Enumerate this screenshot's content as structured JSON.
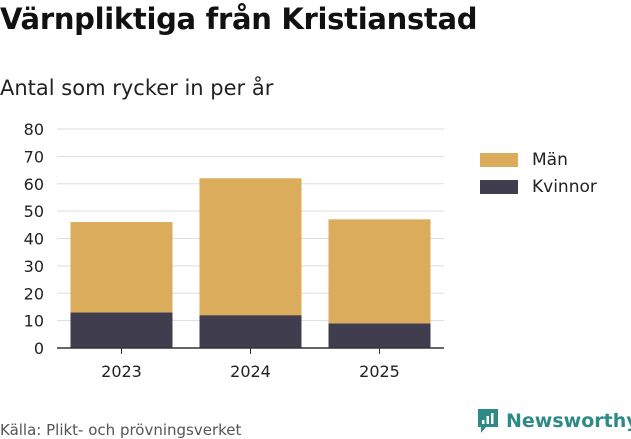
{
  "title": "Värnpliktiga från Kristianstad",
  "subtitle": "Antal som rycker in per år",
  "source": "Källa: Plikt- och prövningsverket",
  "brand": "Newsworthy",
  "colors": {
    "man": "#dbac5b",
    "kvinnor": "#403d4f",
    "brand": "#2e8a86"
  },
  "legend": [
    {
      "label": "Män",
      "color": "#dbac5b"
    },
    {
      "label": "Kvinnor",
      "color": "#403d4f"
    }
  ],
  "chart_data": {
    "type": "bar",
    "stacked": true,
    "categories": [
      "2023",
      "2024",
      "2025"
    ],
    "series": [
      {
        "name": "Kvinnor",
        "values": [
          13,
          12,
          9
        ],
        "color": "#403d4f"
      },
      {
        "name": "Män",
        "values": [
          33,
          50,
          38
        ],
        "color": "#dbac5b"
      }
    ],
    "ylim": [
      0,
      80
    ],
    "yticks": [
      0,
      10,
      20,
      30,
      40,
      50,
      60,
      70,
      80
    ],
    "grid": true,
    "legend_position": "right"
  }
}
